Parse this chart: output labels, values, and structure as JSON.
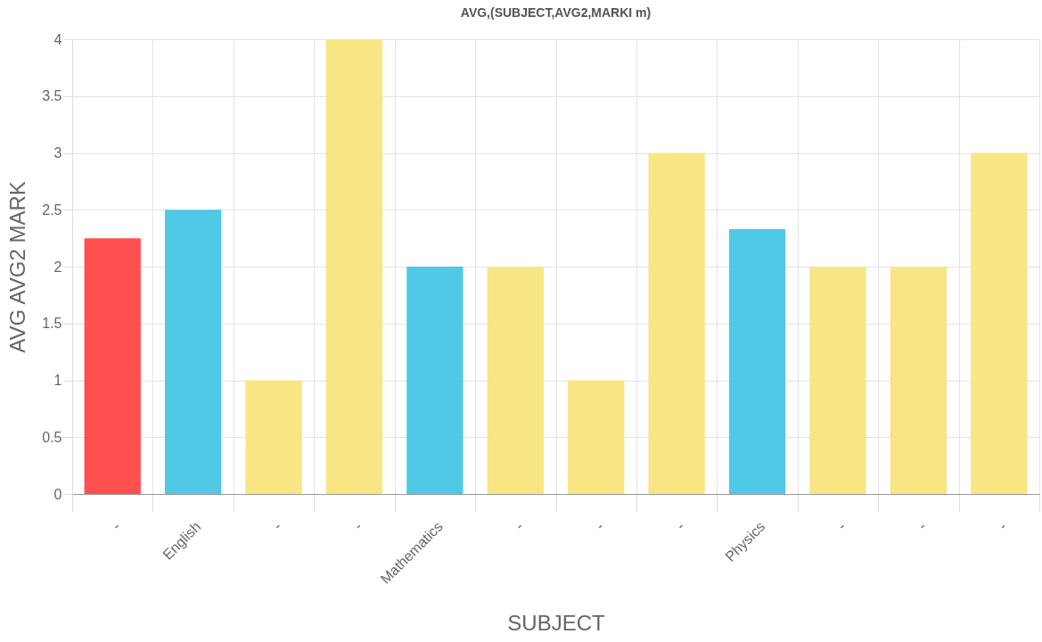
{
  "chart_data": {
    "type": "bar",
    "title": "AVG,(SUBJECT,AVG2,MARKI m)",
    "xlabel": "SUBJECT",
    "ylabel": "AVG AVG2 MARK",
    "categories": [
      "-",
      "English",
      "-",
      "-",
      "Mathematics",
      "-",
      "-",
      "-",
      "Physics",
      "-",
      "-",
      "-"
    ],
    "values": [
      2.25,
      2.5,
      1,
      4,
      2,
      2,
      1,
      3,
      2.33,
      2,
      2,
      3
    ],
    "colors": [
      "#ff5050",
      "#4fc9e6",
      "#f8e584",
      "#f8e584",
      "#4fc9e6",
      "#f8e584",
      "#f8e584",
      "#f8e584",
      "#4fc9e6",
      "#f8e584",
      "#f8e584",
      "#f8e584"
    ],
    "ylim": [
      0,
      4
    ],
    "yticks": [
      0,
      0.5,
      1,
      1.5,
      2,
      2.5,
      3,
      3.5,
      4
    ],
    "grid": true
  }
}
